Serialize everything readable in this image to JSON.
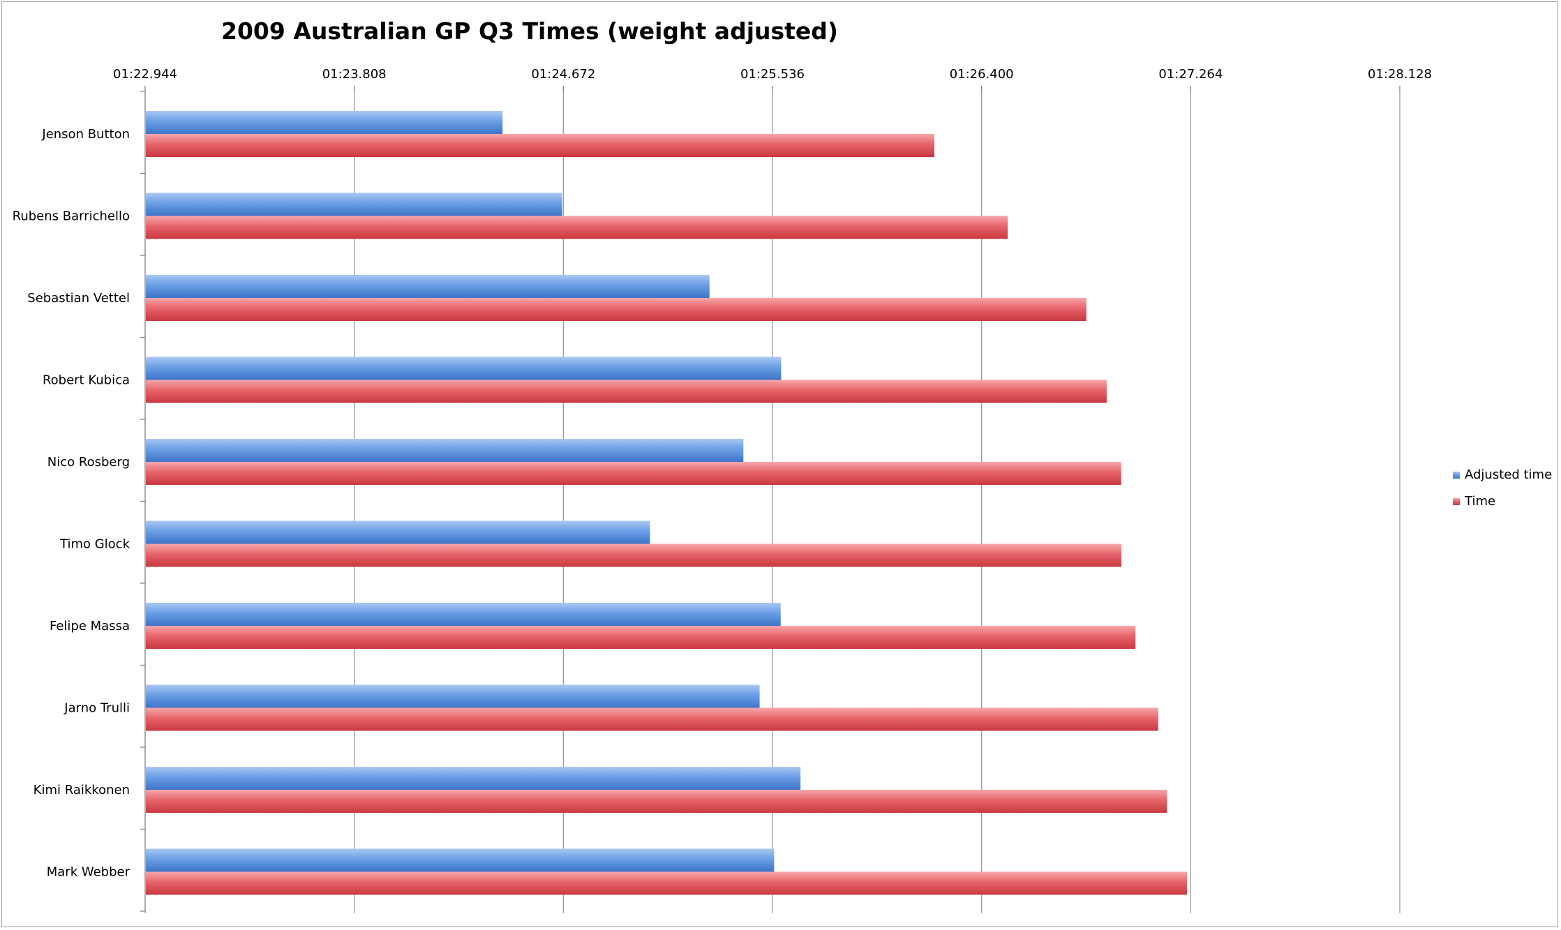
{
  "chart_data": {
    "type": "bar",
    "orientation": "horizontal",
    "title": "2009 Australian GP Q3 Times (weight adjusted)",
    "xlabel": "",
    "ylabel": "",
    "x_axis_position": "top",
    "x_ticks": [
      "01:22.944",
      "01:23.808",
      "01:24.672",
      "01:25.536",
      "01:26.400",
      "01:27.264",
      "01:28.128"
    ],
    "xlim": [
      82.944,
      88.128
    ],
    "grid": true,
    "legend_position": "right",
    "categories": [
      "Jenson Button",
      "Rubens Barrichello",
      "Sebastian Vettel",
      "Robert Kubica",
      "Nico Rosberg",
      "Timo Glock",
      "Felipe Massa",
      "Jarno Trulli",
      "Kimi Raikkonen",
      "Mark Webber"
    ],
    "series": [
      {
        "name": "Adjusted time",
        "color": "#5a8fdc",
        "values": [
          84.418,
          84.664,
          85.273,
          85.569,
          85.413,
          85.027,
          85.567,
          85.48,
          85.649,
          85.54
        ]
      },
      {
        "name": "Time",
        "color": "#e0525a",
        "values": [
          86.202,
          86.505,
          86.83,
          86.914,
          86.974,
          86.975,
          87.033,
          87.127,
          87.163,
          87.246
        ]
      }
    ]
  }
}
